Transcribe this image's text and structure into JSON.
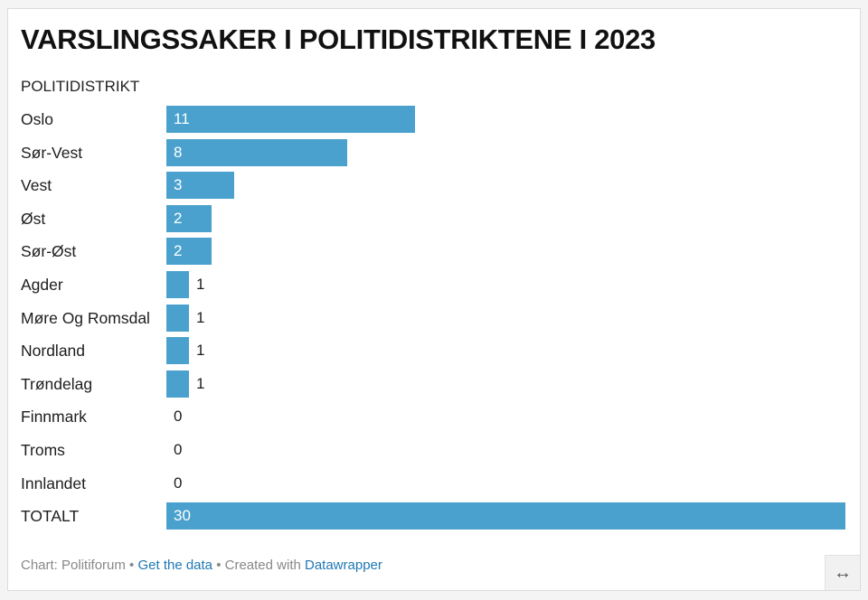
{
  "title": "VARSLINGSSAKER I POLITIDISTRIKTENE I 2023",
  "column_header": "POLITIDISTRIKT",
  "colors": {
    "bar": "#4ba1cd"
  },
  "chart_data": {
    "type": "bar",
    "orientation": "horizontal",
    "categories": [
      "Oslo",
      "Sør-Vest",
      "Vest",
      "Øst",
      "Sør-Øst",
      "Agder",
      "Møre Og Romsdal",
      "Nordland",
      "Trøndelag",
      "Finnmark",
      "Troms",
      "Innlandet",
      "TOTALT"
    ],
    "values": [
      11,
      8,
      3,
      2,
      2,
      1,
      1,
      1,
      1,
      0,
      0,
      0,
      30
    ],
    "xlim": [
      0,
      30
    ],
    "title": "VARSLINGSSAKER I POLITIDISTRIKTENE I 2023",
    "grid": false
  },
  "footer": {
    "prefix": "Chart: Politiforum • ",
    "get_data": "Get the data",
    "middle": " • Created with ",
    "datawrapper": "Datawrapper"
  },
  "resize_icon": "↔"
}
